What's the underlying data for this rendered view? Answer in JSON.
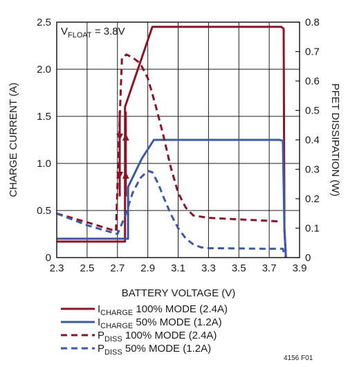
{
  "chart_data": {
    "type": "line",
    "xlabel": "BATTERY VOLTAGE (V)",
    "ylabel": "CHARGE CURRENT (A)",
    "y2label": "PFET DISSIPATION (W)",
    "xlim": [
      2.3,
      3.9
    ],
    "ylim": [
      0,
      2.5
    ],
    "y2lim": [
      0,
      0.8
    ],
    "x_ticks": [
      "2.3",
      "2.5",
      "2.7",
      "2.9",
      "3.1",
      "3.3",
      "3.5",
      "3.7",
      "3.9"
    ],
    "y_ticks": [
      "0",
      "0.5",
      "1.0",
      "1.5",
      "2.0",
      "2.5"
    ],
    "y2_ticks": [
      "0",
      "0.1",
      "0.2",
      "0.3",
      "0.4",
      "0.5",
      "0.6",
      "0.7",
      "0.8"
    ],
    "grid": true,
    "legend_position": "bottom",
    "annotation": {
      "main": "V",
      "sub": "FLOAT",
      "rest": " = 3.8V",
      "position": "top-left"
    },
    "figure_id": "4156 F01",
    "series": [
      {
        "legend_main": "I",
        "legend_sub": "CHARGE",
        "legend_rest": " 100% MODE (2.4A)",
        "axis": "left",
        "color": "#8b1428",
        "dash": "solid",
        "x": [
          2.3,
          2.75,
          2.75,
          2.93,
          3.78,
          3.795,
          3.8,
          3.81
        ],
        "y": [
          0.17,
          0.17,
          1.6,
          2.45,
          2.45,
          2.43,
          0.3,
          0.0
        ]
      },
      {
        "legend_main": "I",
        "legend_sub": "CHARGE",
        "legend_rest": " 50% MODE (1.2A)",
        "axis": "left",
        "color": "#3b5aa6",
        "dash": "solid",
        "x": [
          2.3,
          2.77,
          2.77,
          2.86,
          2.94,
          3.77,
          3.79,
          3.8,
          3.81
        ],
        "y": [
          0.2,
          0.2,
          0.75,
          1.05,
          1.25,
          1.25,
          1.24,
          0.3,
          0.0
        ]
      },
      {
        "legend_main": "P",
        "legend_sub": "DISS",
        "legend_rest": " 100% MODE (2.4A)",
        "axis": "right",
        "color": "#8b1428",
        "dash": "dashed",
        "x": [
          2.3,
          2.5,
          2.69,
          2.71,
          2.73,
          2.76,
          2.8,
          2.85,
          2.9,
          2.95,
          3.0,
          3.05,
          3.1,
          3.15,
          3.2,
          3.3,
          3.5,
          3.7,
          3.78
        ],
        "y": [
          0.15,
          0.12,
          0.09,
          0.4,
          0.68,
          0.69,
          0.68,
          0.66,
          0.61,
          0.52,
          0.42,
          0.31,
          0.22,
          0.17,
          0.143,
          0.135,
          0.13,
          0.125,
          0.122
        ]
      },
      {
        "legend_main": "P",
        "legend_sub": "DISS",
        "legend_rest": " 50% MODE (1.2A)",
        "axis": "right",
        "color": "#3b5aa6",
        "dash": "dashed",
        "x": [
          2.3,
          2.5,
          2.7,
          2.75,
          2.8,
          2.85,
          2.9,
          2.93,
          2.97,
          3.0,
          3.05,
          3.1,
          3.15,
          3.2,
          3.25,
          3.3,
          3.5,
          3.7,
          3.79,
          3.8,
          3.81
        ],
        "y": [
          0.15,
          0.11,
          0.08,
          0.14,
          0.22,
          0.27,
          0.295,
          0.29,
          0.25,
          0.21,
          0.15,
          0.1,
          0.065,
          0.045,
          0.035,
          0.032,
          0.031,
          0.03,
          0.03,
          0.01,
          0.0
        ]
      }
    ],
    "arrows": [
      {
        "series_index": 0,
        "x": 2.715,
        "y_top": 1.55,
        "y_bottom": 0.65,
        "direction": "down"
      },
      {
        "series_index": 0,
        "x": 2.755,
        "y_top": 1.55,
        "y_bottom": 0.65,
        "direction": "up"
      }
    ]
  }
}
